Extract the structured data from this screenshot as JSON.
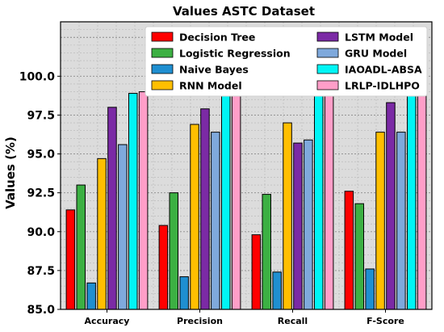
{
  "chart_data": {
    "type": "bar",
    "title": "Values ASTC Dataset",
    "ylabel": "Values (%)",
    "xlabel": "",
    "categories": [
      "Accuracy",
      "Precision",
      "Recall",
      "F-Score"
    ],
    "ylim": [
      85.0,
      103.5
    ],
    "yticks": [
      85.0,
      87.5,
      90.0,
      92.5,
      95.0,
      97.5,
      100.0
    ],
    "grid": true,
    "legend_position": "top",
    "series": [
      {
        "name": "Decision Tree",
        "color": "#ff0000",
        "values": [
          91.4,
          90.4,
          89.8,
          92.6
        ]
      },
      {
        "name": "Logistic Regression",
        "color": "#3cb043",
        "values": [
          93.0,
          92.5,
          92.4,
          91.8
        ]
      },
      {
        "name": "Naive Bayes",
        "color": "#1f8fd1",
        "values": [
          86.7,
          87.1,
          87.4,
          87.6
        ]
      },
      {
        "name": "RNN Model",
        "color": "#ffbf00",
        "values": [
          94.7,
          96.9,
          97.0,
          96.4
        ]
      },
      {
        "name": "LSTM Model",
        "color": "#7b2aa5",
        "values": [
          98.0,
          97.9,
          95.7,
          98.3
        ]
      },
      {
        "name": "GRU Model",
        "color": "#7fa9dc",
        "values": [
          95.6,
          96.4,
          95.9,
          96.4
        ]
      },
      {
        "name": "IAOADL-ABSA",
        "color": "#00f5f5",
        "values": [
          98.9,
          98.9,
          98.9,
          98.9
        ]
      },
      {
        "name": "LRLP-IDLHPO",
        "color": "#ff9ec8",
        "values": [
          99.0,
          99.0,
          99.0,
          99.0
        ]
      }
    ]
  }
}
